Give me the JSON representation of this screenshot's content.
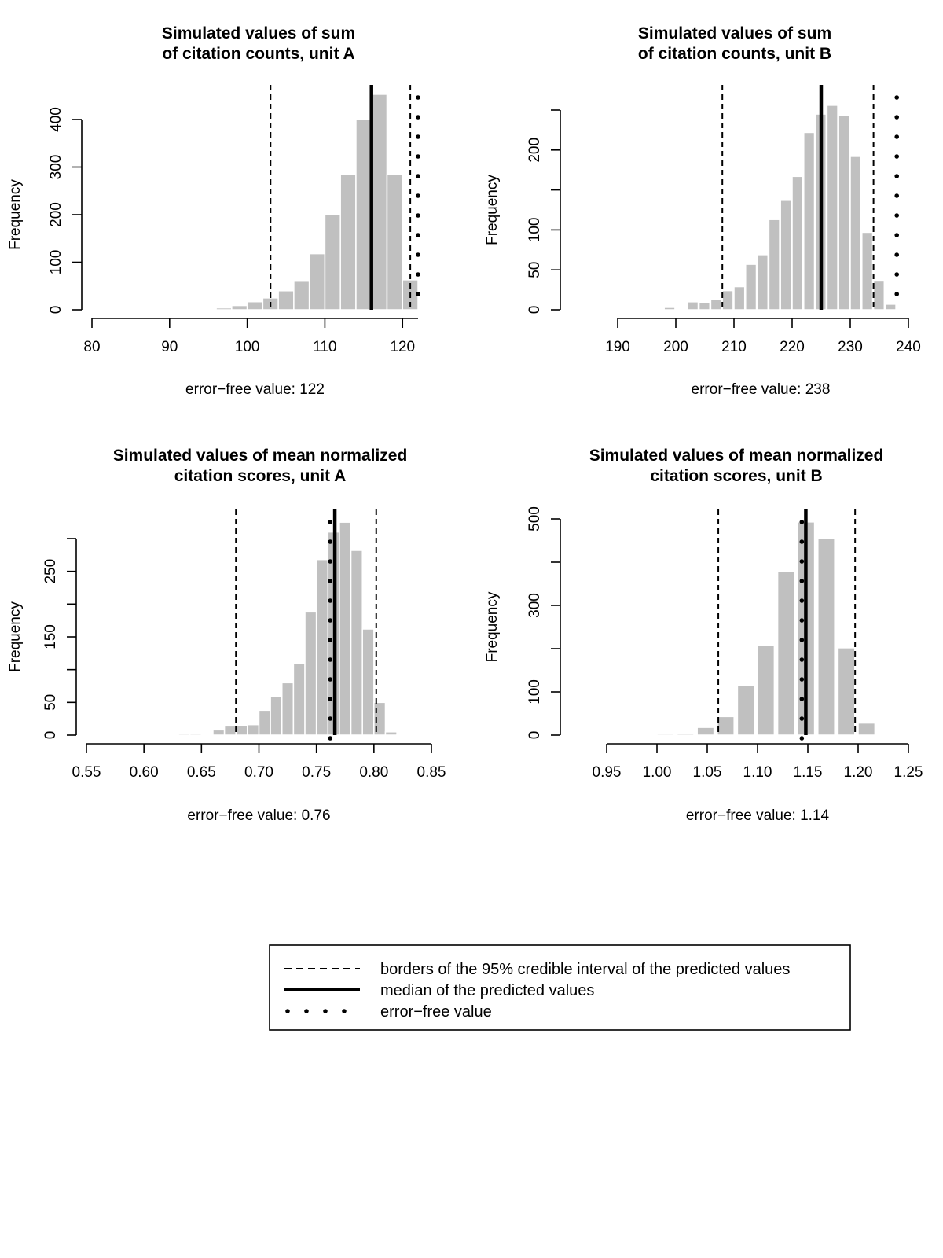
{
  "colors": {
    "bar_fill": "#c0c0c0",
    "bar_edge": "#ffffff",
    "line": "#000000",
    "background": "#ffffff"
  },
  "legend": {
    "entries": [
      {
        "style": "dashed",
        "label": "borders of the 95% credible interval of the predicted values"
      },
      {
        "style": "solid",
        "label": "median of the predicted values"
      },
      {
        "style": "dotted",
        "label": "error−free value"
      }
    ]
  },
  "chart_data": [
    {
      "type": "bar",
      "title_lines": [
        "Simulated values of sum",
        "of citation counts, unit A"
      ],
      "ylabel": "Frequency",
      "xlabel": "error−free value: 122",
      "xlim": [
        80,
        122
      ],
      "ylim": [
        0,
        455
      ],
      "xticks": [
        {
          "value": 80,
          "label": "80"
        },
        {
          "value": 90,
          "label": "90"
        },
        {
          "value": 100,
          "label": "100"
        },
        {
          "value": 110,
          "label": "110"
        },
        {
          "value": 120,
          "label": "120"
        }
      ],
      "yticks": [
        {
          "value": 0,
          "label": "0"
        },
        {
          "value": 100,
          "label": "100"
        },
        {
          "value": 200,
          "label": "200"
        },
        {
          "value": 300,
          "label": "300"
        },
        {
          "value": 400,
          "label": "400"
        }
      ],
      "bin_width": 2,
      "bins_start": [
        96,
        98,
        100,
        102,
        104,
        106,
        108,
        110,
        112,
        114,
        116,
        118,
        120
      ],
      "counts": [
        4,
        9,
        17,
        25,
        40,
        60,
        118,
        200,
        285,
        400,
        453,
        284,
        63
      ],
      "median": 116,
      "ci": [
        103,
        121
      ],
      "error_free": 122
    },
    {
      "type": "bar",
      "title_lines": [
        "Simulated values of sum",
        "of citation counts, unit B"
      ],
      "ylabel": "Frequency",
      "xlabel": "error−free value: 238",
      "xlim": [
        190,
        240
      ],
      "ylim": [
        0,
        255
      ],
      "xticks": [
        {
          "value": 190,
          "label": "190"
        },
        {
          "value": 200,
          "label": "200"
        },
        {
          "value": 210,
          "label": "210"
        },
        {
          "value": 220,
          "label": "220"
        },
        {
          "value": 230,
          "label": "230"
        },
        {
          "value": 240,
          "label": "240"
        }
      ],
      "yticks": [
        {
          "value": 0,
          "label": "0"
        },
        {
          "value": 50,
          "label": "50"
        },
        {
          "value": 100,
          "label": "100"
        },
        {
          "value": 200,
          "label": "200"
        }
      ],
      "ytick_minor": [
        150,
        250
      ],
      "bin_width": 1.85,
      "bins_start": [
        196,
        198,
        202,
        204,
        206,
        208,
        210,
        212,
        214,
        216,
        218,
        220,
        222,
        224,
        226,
        228,
        230,
        232,
        234,
        236
      ],
      "counts": [
        1,
        3,
        10,
        9,
        13,
        24,
        29,
        57,
        69,
        113,
        137,
        167,
        222,
        245,
        256,
        243,
        192,
        97,
        36,
        7
      ],
      "median": 225,
      "ci": [
        208,
        234
      ],
      "error_free": 238
    },
    {
      "type": "bar",
      "title_lines": [
        "Simulated values of mean normalized",
        "citation scores, unit A"
      ],
      "ylabel": "Frequency",
      "xlabel": "error−free value: 0.76",
      "xlim": [
        0.55,
        0.85
      ],
      "ylim": [
        0,
        310
      ],
      "xticks": [
        {
          "value": 0.55,
          "label": "0.55"
        },
        {
          "value": 0.6,
          "label": "0.60"
        },
        {
          "value": 0.65,
          "label": "0.65"
        },
        {
          "value": 0.7,
          "label": "0.70"
        },
        {
          "value": 0.75,
          "label": "0.75"
        },
        {
          "value": 0.8,
          "label": "0.80"
        },
        {
          "value": 0.85,
          "label": "0.85"
        }
      ],
      "yticks": [
        {
          "value": 0,
          "label": "0"
        },
        {
          "value": 50,
          "label": "50"
        },
        {
          "value": 150,
          "label": "150"
        },
        {
          "value": 250,
          "label": "250"
        }
      ],
      "ytick_minor": [
        100,
        200,
        300
      ],
      "bin_width": 0.01,
      "bins_start": [
        0.6,
        0.62,
        0.63,
        0.64,
        0.65,
        0.66,
        0.67,
        0.68,
        0.69,
        0.7,
        0.71,
        0.72,
        0.73,
        0.74,
        0.75,
        0.76,
        0.77,
        0.78,
        0.79,
        0.8,
        0.81,
        0.82
      ],
      "counts": [
        1,
        1,
        2,
        2,
        1,
        8,
        14,
        15,
        16,
        38,
        59,
        80,
        110,
        188,
        268,
        310,
        325,
        282,
        162,
        50,
        5,
        1
      ],
      "median": 0.766,
      "ci": [
        0.68,
        0.802
      ],
      "error_free": 0.762
    },
    {
      "type": "bar",
      "title_lines": [
        "Simulated values of mean normalized",
        "citation scores, unit B"
      ],
      "ylabel": "Frequency",
      "xlabel": "error−free value: 1.14",
      "xlim": [
        0.95,
        1.25
      ],
      "ylim": [
        0,
        500
      ],
      "xticks": [
        {
          "value": 0.95,
          "label": "0.95"
        },
        {
          "value": 1.0,
          "label": "1.00"
        },
        {
          "value": 1.05,
          "label": "1.05"
        },
        {
          "value": 1.1,
          "label": "1.10"
        },
        {
          "value": 1.15,
          "label": "1.15"
        },
        {
          "value": 1.2,
          "label": "1.20"
        },
        {
          "value": 1.25,
          "label": "1.25"
        }
      ],
      "yticks": [
        {
          "value": 0,
          "label": "0"
        },
        {
          "value": 100,
          "label": "100"
        },
        {
          "value": 300,
          "label": "300"
        },
        {
          "value": 500,
          "label": "500"
        }
      ],
      "ytick_minor": [
        200,
        400
      ],
      "bin_width": 0.0167,
      "bins_start": [
        0.98,
        1.0,
        1.02,
        1.04,
        1.06,
        1.08,
        1.1,
        1.12,
        1.14,
        1.16,
        1.18,
        1.2
      ],
      "counts": [
        1,
        3,
        5,
        18,
        43,
        115,
        208,
        378,
        493,
        455,
        202,
        28
      ],
      "median": 1.148,
      "ci": [
        1.061,
        1.197
      ],
      "error_free": 1.144
    }
  ]
}
